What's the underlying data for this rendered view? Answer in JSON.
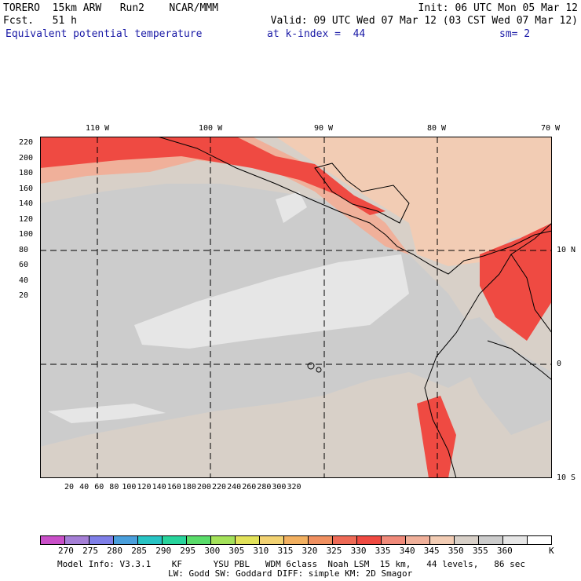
{
  "header": {
    "line1_left": "TORERO  15km ARW   Run2    NCAR/MMM",
    "line1_right": "Init: 06 UTC Mon 05 Mar 12",
    "line2_left": "Fcst.   51 h",
    "line2_right": "Valid: 09 UTC Wed 07 Mar 12 (03 CST Wed 07 Mar 12)",
    "line3_field": "Equivalent potential temperature",
    "line3_level": "at k-index =  44",
    "line3_smooth": "sm= 2"
  },
  "map": {
    "top_lon_labels": [
      "110 W",
      "100 W",
      "90 W",
      "80 W",
      "70 W"
    ],
    "right_lat_labels": [
      "10 N",
      "0",
      "10 S"
    ],
    "left_ticks": [
      "220",
      "200",
      "180",
      "160",
      "140",
      "120",
      "100",
      "80",
      "60",
      "40",
      "20"
    ],
    "bottom_ticks": [
      "20",
      "40",
      "60",
      "80",
      "100",
      "120",
      "140",
      "160",
      "180",
      "200",
      "220",
      "240",
      "260",
      "280",
      "300",
      "320"
    ]
  },
  "colorbar": {
    "colors": [
      "#c94fc8",
      "#a57fd6",
      "#7f7fe8",
      "#4a9fdc",
      "#28c4c4",
      "#28d49c",
      "#5adc6a",
      "#a4e25a",
      "#e2e25a",
      "#f2d272",
      "#f2b060",
      "#f09060",
      "#ee6a56",
      "#ef4a42",
      "#f08a7a",
      "#f0b09a",
      "#f2ccb4",
      "#d8d0c8",
      "#cccccc",
      "#e6e6e6",
      "#ffffff"
    ],
    "labels": [
      "270",
      "275",
      "280",
      "285",
      "290",
      "295",
      "300",
      "305",
      "310",
      "315",
      "320",
      "325",
      "330",
      "335",
      "340",
      "345",
      "350",
      "355",
      "360"
    ],
    "unit": "K"
  },
  "footer": {
    "line1": "Model Info: V3.3.1    KF      YSU PBL   WDM 6class  Noah LSM  15 km,   44 levels,   86 sec",
    "line2": "LW: Godd SW: Goddard DIFF: simple KM: 2D Smagor"
  },
  "colors": {
    "title_blue": "#1a1aa6"
  }
}
